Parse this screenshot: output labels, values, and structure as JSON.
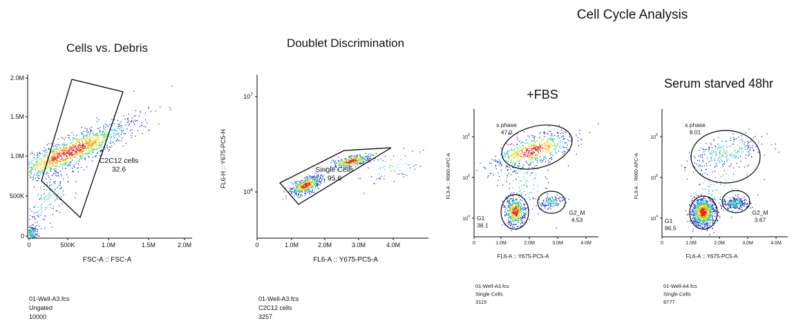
{
  "header": {
    "title": "Cell Cycle Analysis"
  },
  "panels": [
    {
      "title": "Cells vs. Debris",
      "x_label": "FSC-A :: FSC-A",
      "x_ticks": [
        "0",
        "500K",
        "1.0M",
        "1.5M",
        "2.0M"
      ],
      "y_ticks": [
        "0",
        "500K",
        "1.0M",
        "1.5M",
        "2.0M"
      ],
      "gates": [
        {
          "name": "C2C12 cells",
          "percent": "32.6"
        }
      ],
      "file": [
        "01-Well-A3.fcs",
        "Ungated",
        "10000"
      ]
    },
    {
      "title": "Doublet Discrimination",
      "x_label": "FL6-A :: Y675-PC5-A",
      "y_label": "FL6-H :: Y675-PC5-H",
      "x_ticks": [
        "0",
        "1.0M",
        "2.0M",
        "3.0M",
        "4.0M"
      ],
      "y_ticks": [
        {
          "base": "10",
          "exp": "7"
        },
        {
          "base": "10",
          "exp": "6"
        }
      ],
      "gates": [
        {
          "name": "Single Cells",
          "percent": "95.6"
        }
      ],
      "file": [
        "01-Well-A3.fcs",
        "C2C12 cells",
        "3257"
      ]
    },
    {
      "title": "+FBS",
      "x_label": "FL6-A :: Y675-PC5-A",
      "y_label": "FL9-A :: R660-APC-A",
      "x_ticks": [
        "0",
        "1.0M",
        "2.0M",
        "3.0M",
        "4.0M"
      ],
      "y_ticks": [
        {
          "base": "10",
          "exp": "6"
        },
        {
          "base": "10",
          "exp": "5"
        },
        {
          "base": "10",
          "exp": "4"
        }
      ],
      "gates": [
        {
          "name": "s phase",
          "percent": "47.0"
        },
        {
          "name": "G1",
          "percent": "38.1"
        },
        {
          "name": "G2_M",
          "percent": "4.53"
        }
      ],
      "file": [
        "01-Well-A3.fcs",
        "Single Cells",
        "3115"
      ]
    },
    {
      "title": "Serum starved 48hr",
      "x_label": "FL6-A :: Y675-PC5-A",
      "y_label": "FL9-A :: R660-APC-A",
      "x_ticks": [
        "0",
        "1.0M",
        "2.0M",
        "3.0M",
        "4.0M"
      ],
      "y_ticks": [
        {
          "base": "10",
          "exp": "6"
        },
        {
          "base": "10",
          "exp": "5"
        },
        {
          "base": "10",
          "exp": "4"
        }
      ],
      "gates": [
        {
          "name": "s phase",
          "percent": "8.01"
        },
        {
          "name": "G1",
          "percent": "86.5"
        },
        {
          "name": "G2_M",
          "percent": "3.67"
        }
      ],
      "file": [
        "01-Well-A4.fcs",
        "Single Cells",
        "8777"
      ]
    }
  ]
}
